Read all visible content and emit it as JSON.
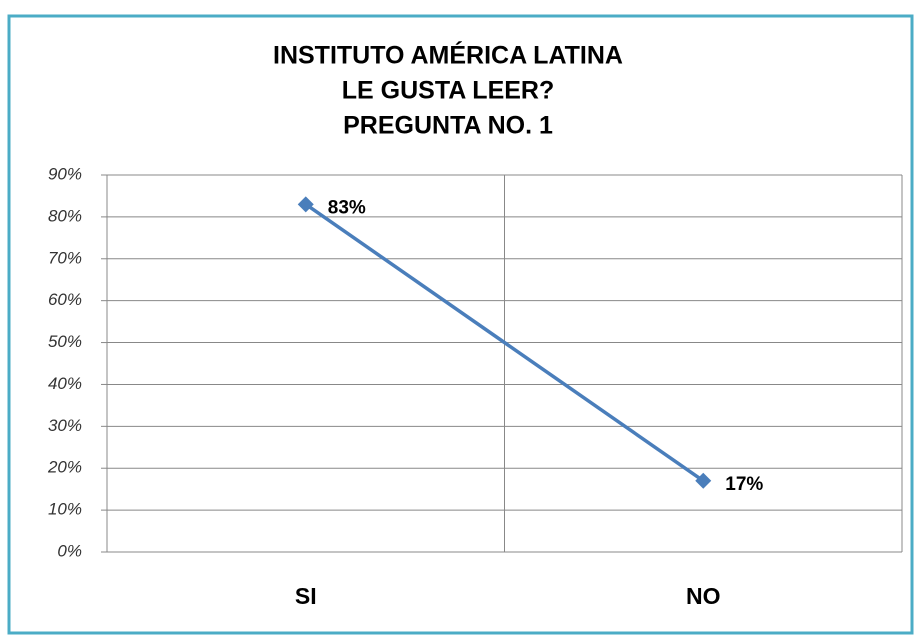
{
  "chart_data": {
    "type": "line",
    "title": [
      "INSTITUTO AMÉRICA LATINA",
      "LE GUSTA LEER?",
      "PREGUNTA NO. 1"
    ],
    "categories": [
      "SI",
      "NO"
    ],
    "values": [
      83,
      17
    ],
    "value_labels": [
      "83%",
      "17%"
    ],
    "color": "#4a7ebb",
    "ylim": [
      0,
      90
    ],
    "yticks": [
      {
        "value": 0,
        "label": "0%"
      },
      {
        "value": 10,
        "label": "10%"
      },
      {
        "value": 20,
        "label": "20%"
      },
      {
        "value": 30,
        "label": "30%"
      },
      {
        "value": 40,
        "label": "40%"
      },
      {
        "value": 50,
        "label": "50%"
      },
      {
        "value": 60,
        "label": "60%"
      },
      {
        "value": 70,
        "label": "70%"
      },
      {
        "value": 80,
        "label": "80%"
      },
      {
        "value": 90,
        "label": "90%"
      }
    ],
    "grid": true
  }
}
